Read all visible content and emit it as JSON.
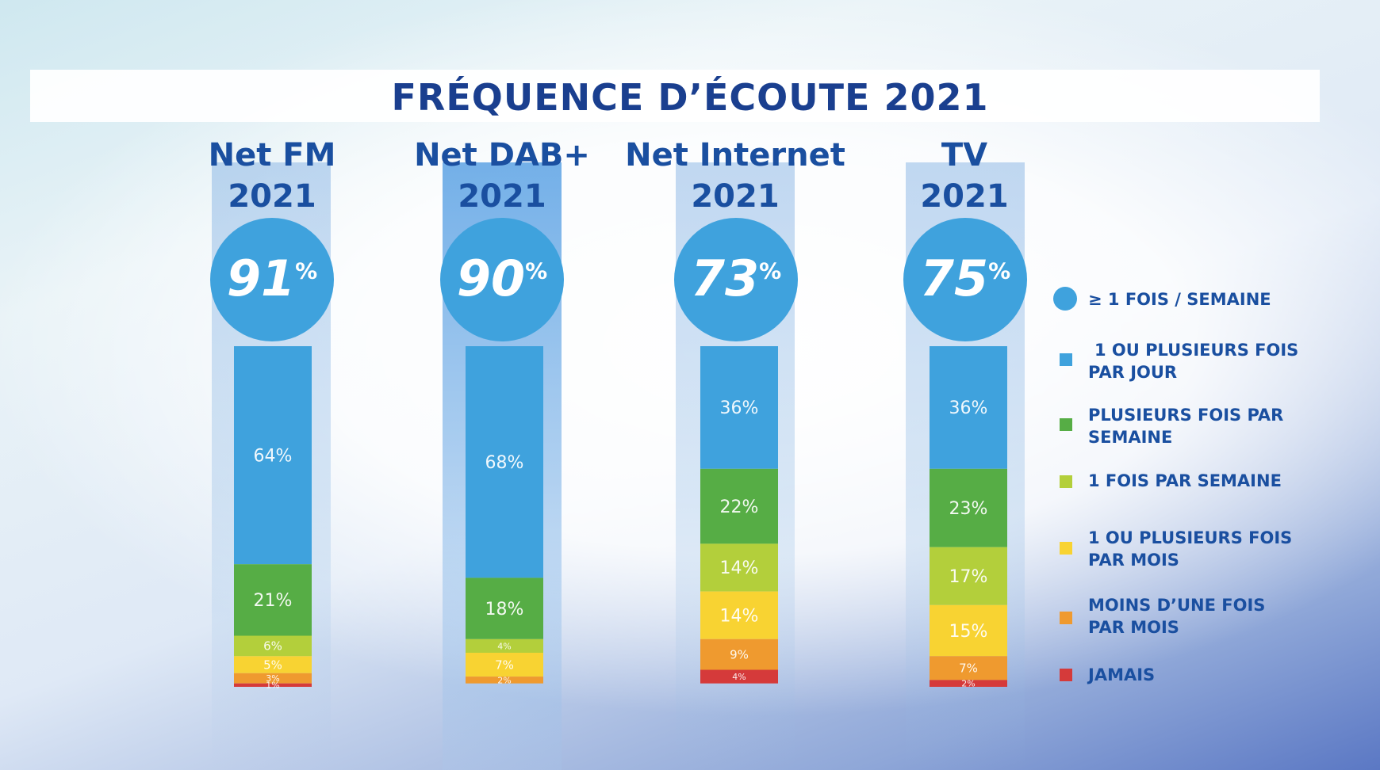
{
  "chart_data": {
    "type": "bar",
    "stacked": true,
    "title": "FRÉQUENCE D’ÉCOUTE 2021",
    "categories": [
      {
        "name": "Net FM",
        "year": "2021",
        "headline": "91",
        "headline_unit": "%"
      },
      {
        "name": "Net DAB+",
        "year": "2021",
        "headline": "90",
        "headline_unit": "%"
      },
      {
        "name": "Net Internet",
        "year": "2021",
        "headline": "73",
        "headline_unit": "%"
      },
      {
        "name": "TV",
        "year": "2021",
        "headline": "75",
        "headline_unit": "%"
      }
    ],
    "legend_headline": "≥ 1 FOIS / SEMAINE",
    "series": [
      {
        "name": "1 OU PLUSIEURS FOIS PAR JOUR",
        "color": "#3fa2dd",
        "values": [
          64,
          68,
          36,
          36
        ],
        "labels": [
          "64%",
          "68%",
          "36%",
          "36%"
        ]
      },
      {
        "name": "PLUSIEURS FOIS PAR SEMAINE",
        "color": "#56ad45",
        "values": [
          21,
          18,
          22,
          23
        ],
        "labels": [
          "21%",
          "18%",
          "22%",
          "23%"
        ]
      },
      {
        "name": "1 FOIS PAR SEMAINE",
        "color": "#b3cf3b",
        "values": [
          6,
          4,
          14,
          17
        ],
        "labels": [
          "6%",
          "4%",
          "14%",
          "17%"
        ]
      },
      {
        "name": "1 OU PLUSIEURS FOIS PAR MOIS",
        "color": "#f8d332",
        "values": [
          5,
          7,
          14,
          15
        ],
        "labels": [
          "5%",
          "7%",
          "14%",
          "15%"
        ]
      },
      {
        "name": "MOINS D’UNE FOIS PAR MOIS",
        "color": "#ef9a2f",
        "values": [
          3,
          2,
          9,
          7
        ],
        "labels": [
          "3%",
          "2%",
          "9%",
          "7%"
        ]
      },
      {
        "name": "JAMAIS",
        "color": "#d53a3a",
        "values": [
          1,
          0,
          4,
          2
        ],
        "labels": [
          "1%",
          "",
          "4%",
          "2%"
        ]
      }
    ],
    "legend": [
      {
        "text": "≥ 1 FOIS / SEMAINE",
        "shape": "circle"
      },
      {
        "text": "1 OU PLUSIEURS FOIS",
        "text2": "PAR JOUR",
        "shape": "square"
      },
      {
        "text": "PLUSIEURS FOIS PAR",
        "text2": "SEMAINE",
        "shape": "square"
      },
      {
        "text": "1 FOIS PAR SEMAINE",
        "text2": "",
        "shape": "square"
      },
      {
        "text": "1 OU PLUSIEURS FOIS",
        "text2": "PAR MOIS",
        "shape": "square"
      },
      {
        "text": "MOINS D’UNE FOIS",
        "text2": "PAR MOIS",
        "shape": "square"
      },
      {
        "text": "JAMAIS",
        "text2": "",
        "shape": "square"
      }
    ]
  }
}
